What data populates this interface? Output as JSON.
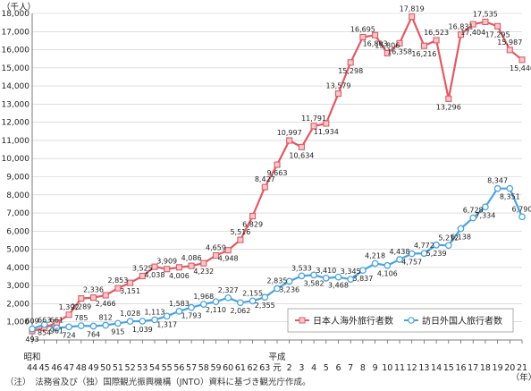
{
  "chart_data": {
    "type": "line",
    "y_unit_label": "（千人）",
    "x_unit_label": "（年）",
    "era_labels": [
      {
        "label": "昭和",
        "at_index": 0
      },
      {
        "label": "平成",
        "at_index": 45
      }
    ],
    "x": [
      "44",
      "45",
      "46",
      "47",
      "48",
      "49",
      "50",
      "51",
      "52",
      "53",
      "54",
      "55",
      "56",
      "57",
      "58",
      "59",
      "60",
      "61",
      "62",
      "63",
      "元",
      "2",
      "3",
      "4",
      "5",
      "6",
      "7",
      "8",
      "9",
      "10",
      "11",
      "12",
      "13",
      "14",
      "15",
      "16",
      "17",
      "18",
      "19",
      "20",
      "21"
    ],
    "ylim": [
      0,
      18000
    ],
    "yticks": [
      1000,
      2000,
      3000,
      4000,
      5000,
      6000,
      7000,
      8000,
      9000,
      10000,
      11000,
      12000,
      13000,
      14000,
      15000,
      16000,
      17000,
      18000
    ],
    "ytick_labels": [
      "1,000",
      "2,000",
      "3,000",
      "4,000",
      "5,000",
      "6,000",
      "7,000",
      "8,000",
      "9,000",
      "10,000",
      "11,000",
      "12,000",
      "13,000",
      "14,000",
      "15,000",
      "16,000",
      "17,000",
      "18,000"
    ],
    "grid": true,
    "legend_position": "bottom-right",
    "series": [
      {
        "name": "日本人海外旅行者数",
        "color": "#e05a63",
        "marker": "square",
        "values": [
          493,
          663,
          961,
          1392,
          2289,
          2336,
          2466,
          2853,
          3151,
          3525,
          4038,
          3909,
          4006,
          4086,
          4232,
          4659,
          4948,
          5516,
          6829,
          8427,
          9663,
          10997,
          10634,
          11791,
          11934,
          13579,
          15298,
          16695,
          16803,
          15806,
          16358,
          17819,
          16216,
          16523,
          13296,
          16831,
          17404,
          17535,
          17295,
          15987,
          15446
        ],
        "labels": [
          "493",
          "663",
          "961",
          "1,392",
          "2,289",
          "2,336",
          "2,466",
          "2,853",
          "3,151",
          "3,525",
          "4,038",
          "3,909",
          "4,006",
          "4,086",
          "4,232",
          "4,659",
          "4,948",
          "5,516",
          "6,829",
          "8,427",
          "9,663",
          "10,997",
          "10,634",
          "11,791",
          "11,934",
          "13,579",
          "15,298",
          "16,695",
          "16,803",
          "15,806",
          "16,358",
          "17,819",
          "16,216",
          "16,523",
          "13,296",
          "16,831",
          "17,404",
          "17,535",
          "17,295",
          "15,987",
          "15,446"
        ]
      },
      {
        "name": "訪日外国人旅行者数",
        "color": "#4aa3df",
        "marker": "circle",
        "values": [
          609,
          854,
          661,
          724,
          785,
          764,
          812,
          915,
          1028,
          1039,
          1113,
          1317,
          1583,
          1793,
          1968,
          2110,
          2327,
          2062,
          2155,
          2355,
          2835,
          3236,
          3533,
          3582,
          3410,
          3468,
          3345,
          3837,
          4218,
          4106,
          4438,
          4757,
          4772,
          5239,
          5212,
          6138,
          6728,
          7334,
          8347,
          8351,
          6790
        ],
        "labels": [
          "609",
          "854",
          "661",
          "724",
          "785",
          "764",
          "812",
          "915",
          "1,028",
          "1,039",
          "1,113",
          "1,317",
          "1,583",
          "1,793",
          "1,968",
          "2,110",
          "2,327",
          "2,062",
          "2,155",
          "2,355",
          "2,835",
          "3,236",
          "3,533",
          "3,582",
          "3,410",
          "3,468",
          "3,345",
          "3,837",
          "4,218",
          "4,106",
          "4,438",
          "4,757",
          "4,772",
          "5,239",
          "5,212",
          "6,138",
          "6,728",
          "7,334",
          "8,347",
          "8,351",
          "6,790"
        ]
      }
    ]
  },
  "note": "（注）　法務省及び（独）国際観光振興機構（JNTO）資料に基づき観光庁作成。"
}
